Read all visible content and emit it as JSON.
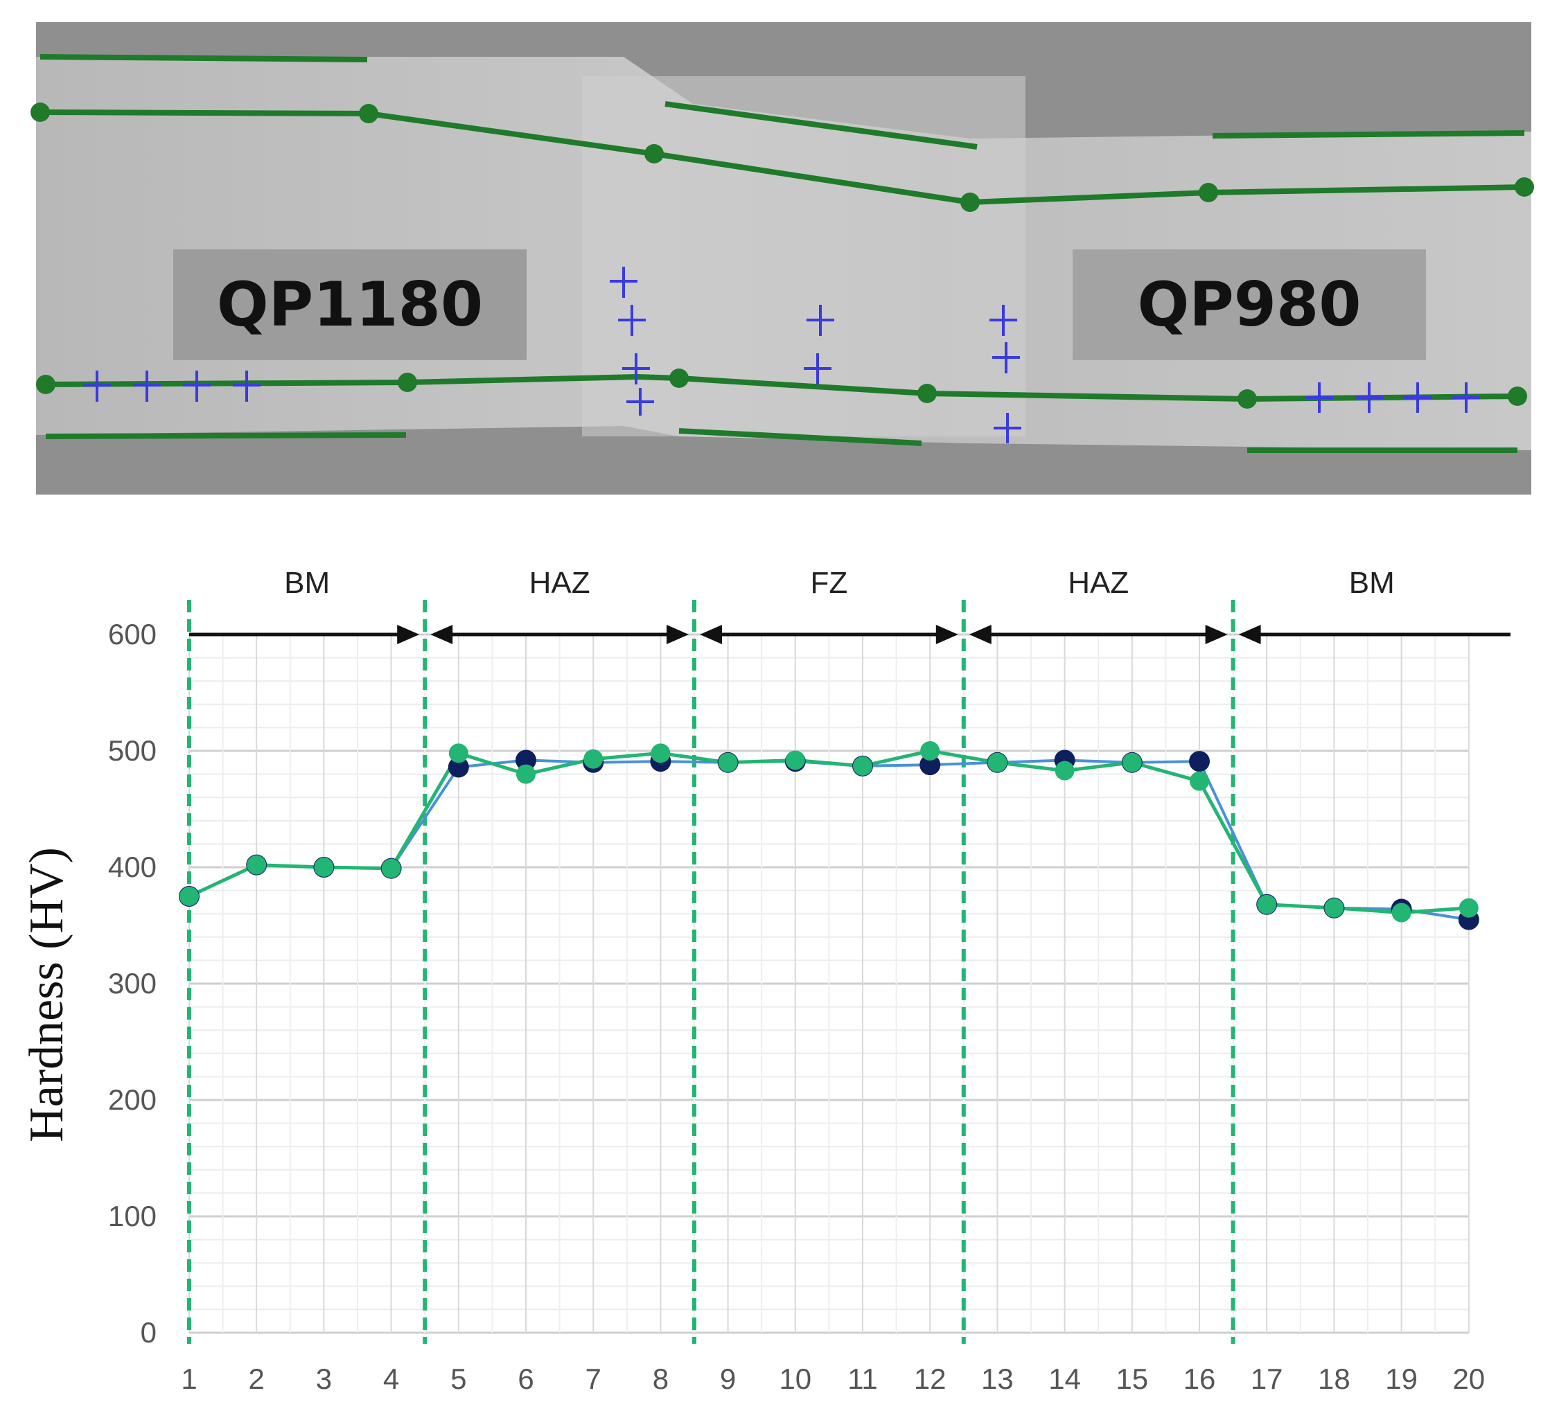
{
  "micrograph": {
    "left_label": "QP1180",
    "right_label": "QP980"
  },
  "chart_data": {
    "type": "line",
    "title": "",
    "xlabel": "",
    "ylabel": "Hardness (HV)",
    "x": [
      1,
      2,
      3,
      4,
      5,
      6,
      7,
      8,
      9,
      10,
      11,
      12,
      13,
      14,
      15,
      16,
      17,
      18,
      19,
      20
    ],
    "ylim": [
      0,
      600
    ],
    "yticks": [
      0,
      100,
      200,
      300,
      400,
      500,
      600
    ],
    "grid": true,
    "legend": "none",
    "zones": [
      {
        "label": "BM",
        "from": 1,
        "to": 4.5
      },
      {
        "label": "HAZ",
        "from": 4.5,
        "to": 8.5
      },
      {
        "label": "FZ",
        "from": 8.5,
        "to": 12.5
      },
      {
        "label": "HAZ",
        "from": 12.5,
        "to": 16.5
      },
      {
        "label": "BM",
        "from": 16.5,
        "to": 21
      }
    ],
    "zone_boundaries": [
      1,
      4.5,
      8.5,
      12.5,
      16.5
    ],
    "series": [
      {
        "color": "#0d1f5c",
        "line_color": "#4a90d9",
        "values": [
          375,
          402,
          400,
          399,
          486,
          492,
          490,
          491,
          490,
          491,
          487,
          488,
          490,
          492,
          490,
          491,
          368,
          365,
          364,
          355
        ]
      },
      {
        "color": "#22b573",
        "line_color": "#22b573",
        "values": [
          375,
          402,
          400,
          399,
          498,
          480,
          493,
          498,
          490,
          492,
          487,
          500,
          490,
          483,
          490,
          474,
          368,
          365,
          361,
          365
        ]
      }
    ],
    "colors": {
      "boundary": "#22b573",
      "arrow": "#111111",
      "grid": "#d9d9d9"
    }
  }
}
